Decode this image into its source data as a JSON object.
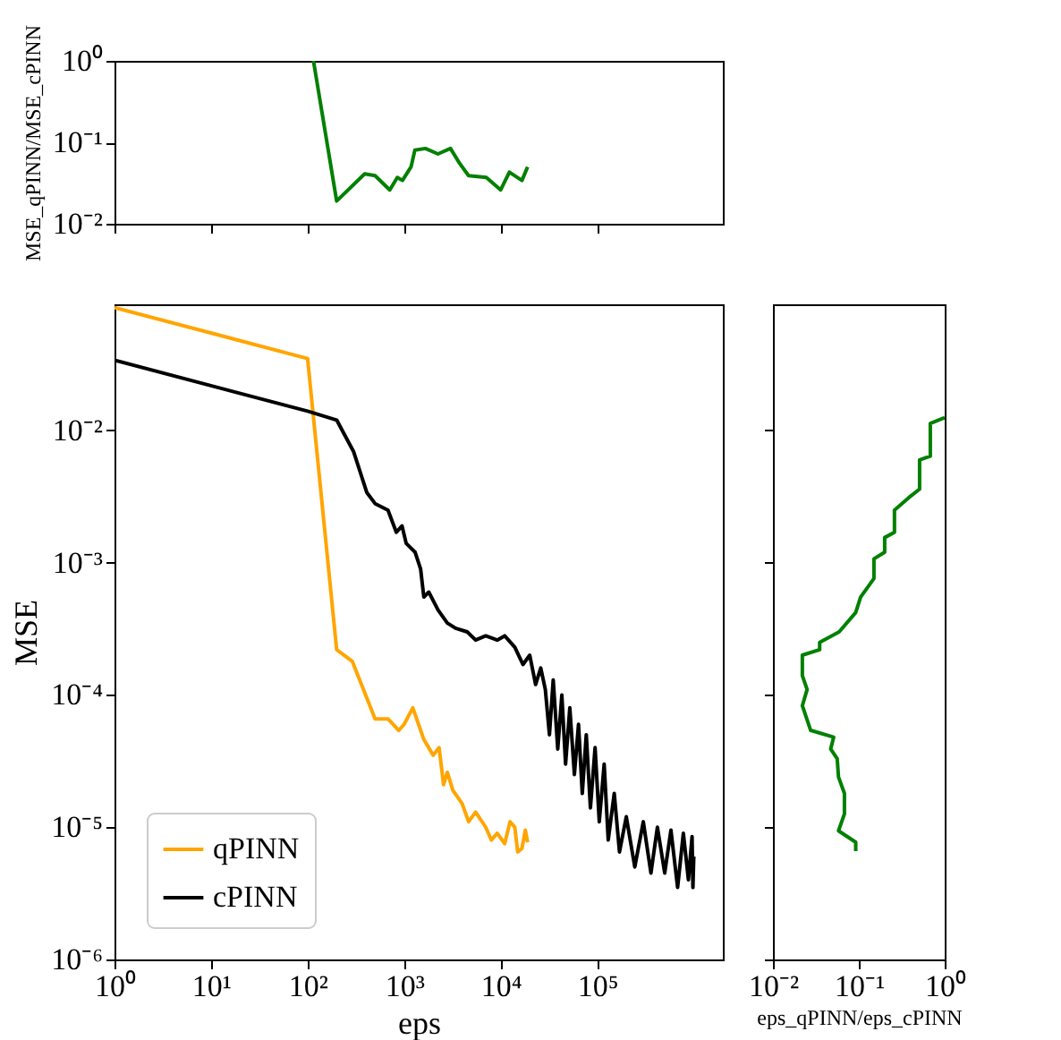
{
  "chart_data": [
    {
      "type": "line",
      "ylabel": "MSE_qPINN/MSE_cPINN",
      "series": [
        {
          "color": "#008000",
          "x": [
            115,
            200,
            390,
            500,
            710,
            850,
            960,
            1180,
            1290,
            1660,
            2240,
            3020,
            3720,
            4650,
            7100,
            10000,
            12300,
            16600,
            19000
          ],
          "values": [
            1.0,
            0.019,
            0.041,
            0.039,
            0.026,
            0.037,
            0.034,
            0.05,
            0.08,
            0.084,
            0.072,
            0.084,
            0.056,
            0.039,
            0.037,
            0.026,
            0.043,
            0.034,
            0.05
          ]
        }
      ],
      "log": "xy",
      "xlim": [
        1,
        2000000
      ],
      "ylim": [
        0.01,
        1
      ],
      "xticks": [
        {
          "value": 1,
          "label": null
        },
        {
          "value": 10,
          "label": null
        },
        {
          "value": 100,
          "label": null
        },
        {
          "value": 1000,
          "label": null
        },
        {
          "value": 10000,
          "label": null
        },
        {
          "value": 100000,
          "label": null
        }
      ],
      "yticks": [
        {
          "value": 0.01,
          "label": "10⁻²"
        },
        {
          "value": 0.1,
          "label": "10⁻¹"
        },
        {
          "value": 1,
          "label": "10⁰"
        }
      ],
      "tick_labels": "y",
      "grid": false,
      "legend": false
    },
    {
      "type": "line",
      "xlabel": "eps",
      "ylabel": "MSE",
      "series": [
        {
          "name": "qPINN",
          "color": "#ffa500",
          "x": [
            1,
            100,
            200,
            290,
            500,
            680,
            880,
            1000,
            1230,
            1600,
            2000,
            2300,
            2560,
            2800,
            3200,
            4000,
            4650,
            5500,
            7000,
            8000,
            9200,
            11000,
            12500,
            14000,
            15000,
            16600,
            18000,
            19000
          ],
          "values": [
            0.085,
            0.035,
            0.00022,
            0.00018,
            6.6e-05,
            6.6e-05,
            5.4e-05,
            6e-05,
            8e-05,
            4.6e-05,
            3.5e-05,
            4e-05,
            2.1e-05,
            2.6e-05,
            1.9e-05,
            1.5e-05,
            1.1e-05,
            1.3e-05,
            1e-05,
            8e-06,
            9e-06,
            7.5e-06,
            1.1e-05,
            1e-05,
            6.5e-06,
            6.9e-06,
            9.5e-06,
            7.7e-06
          ]
        },
        {
          "name": "cPINN",
          "color": "#000000",
          "x": [
            1,
            100,
            200,
            300,
            410,
            500,
            680,
            830,
            950,
            1050,
            1300,
            1480,
            1600,
            1800,
            2240,
            2800,
            3400,
            4500,
            5500,
            7000,
            9200,
            11000,
            14000,
            17000,
            20000,
            23000,
            26000,
            29000,
            32000,
            35000,
            39000,
            43000,
            47000,
            52000,
            58000,
            64000,
            70000,
            77000,
            85000,
            95000,
            105000,
            118000,
            130000,
            150000,
            170000,
            200000,
            245000,
            300000,
            360000,
            420000,
            500000,
            580000,
            680000,
            780000,
            880000,
            960000,
            980000,
            1000000
          ],
          "values": [
            0.034,
            0.014,
            0.012,
            0.0069,
            0.0034,
            0.0028,
            0.0025,
            0.0017,
            0.0019,
            0.0014,
            0.0012,
            0.0009,
            0.00055,
            0.0006,
            0.00044,
            0.00035,
            0.00032,
            0.0003,
            0.00026,
            0.00028,
            0.00026,
            0.00028,
            0.00023,
            0.00017,
            0.0002,
            0.00012,
            0.00016,
            0.00011,
            5e-05,
            0.00013,
            3.9e-05,
            0.0001,
            3e-05,
            8e-05,
            2.5e-05,
            6e-05,
            1.8e-05,
            5e-05,
            1.4e-05,
            4e-05,
            1.1e-05,
            3e-05,
            8e-06,
            1.8e-05,
            6.5e-06,
            1.2e-05,
            5e-06,
            1.1e-05,
            4.5e-06,
            1e-05,
            4.5e-06,
            9.5e-06,
            3.5e-06,
            9e-06,
            4e-06,
            8.5e-06,
            3.5e-06,
            6e-06
          ]
        }
      ],
      "log": "xy",
      "xlim": [
        1,
        2000000
      ],
      "ylim": [
        1e-06,
        0.09
      ],
      "xticks": [
        {
          "value": 1,
          "label": "10⁰"
        },
        {
          "value": 10,
          "label": "10¹"
        },
        {
          "value": 100,
          "label": "10²"
        },
        {
          "value": 1000,
          "label": "10³"
        },
        {
          "value": 10000,
          "label": "10⁴"
        },
        {
          "value": 100000,
          "label": "10⁵"
        }
      ],
      "yticks": [
        {
          "value": 1e-06,
          "label": "10⁻⁶"
        },
        {
          "value": 1e-05,
          "label": "10⁻⁵"
        },
        {
          "value": 0.0001,
          "label": "10⁻⁴"
        },
        {
          "value": 0.001,
          "label": "10⁻³"
        },
        {
          "value": 0.01,
          "label": "10⁻²"
        }
      ],
      "grid": false,
      "legend": "bottom left"
    },
    {
      "type": "line",
      "xlabel": "eps_qPINN/eps_cPINN",
      "series": [
        {
          "color": "#008000",
          "x": [
            1.0,
            0.68,
            0.68,
            0.51,
            0.51,
            0.38,
            0.26,
            0.26,
            0.2,
            0.2,
            0.15,
            0.15,
            0.105,
            0.092,
            0.059,
            0.035,
            0.035,
            0.022,
            0.022,
            0.025,
            0.022,
            0.0275,
            0.051,
            0.047,
            0.056,
            0.058,
            0.068,
            0.068,
            0.058,
            0.092,
            0.092
          ],
          "values": [
            0.0125,
            0.0113,
            0.0064,
            0.006,
            0.0036,
            0.0031,
            0.0025,
            0.0017,
            0.00155,
            0.0012,
            0.00107,
            0.00076,
            0.00055,
            0.00042,
            0.0003,
            0.00025,
            0.00022,
            0.0002,
            0.00014,
            0.00011,
            8.3e-05,
            5.4e-05,
            4.8e-05,
            3.9e-05,
            3.3e-05,
            2.4e-05,
            1.8e-05,
            1.26e-05,
            9.4e-06,
            7.7e-06,
            6.6e-06
          ]
        }
      ],
      "log": "xy",
      "xlim": [
        0.01,
        1
      ],
      "ylim": [
        1e-06,
        0.09
      ],
      "xticks": [
        {
          "value": 0.01,
          "label": "10⁻²"
        },
        {
          "value": 0.1,
          "label": "10⁻¹"
        },
        {
          "value": 1,
          "label": "10⁰"
        }
      ],
      "yticks": [
        {
          "value": 1e-06,
          "label": null
        },
        {
          "value": 1e-05,
          "label": null
        },
        {
          "value": 0.0001,
          "label": null
        },
        {
          "value": 0.001,
          "label": null
        },
        {
          "value": 0.01,
          "label": null
        }
      ],
      "tick_labels": "x",
      "grid": false,
      "legend": false
    }
  ]
}
